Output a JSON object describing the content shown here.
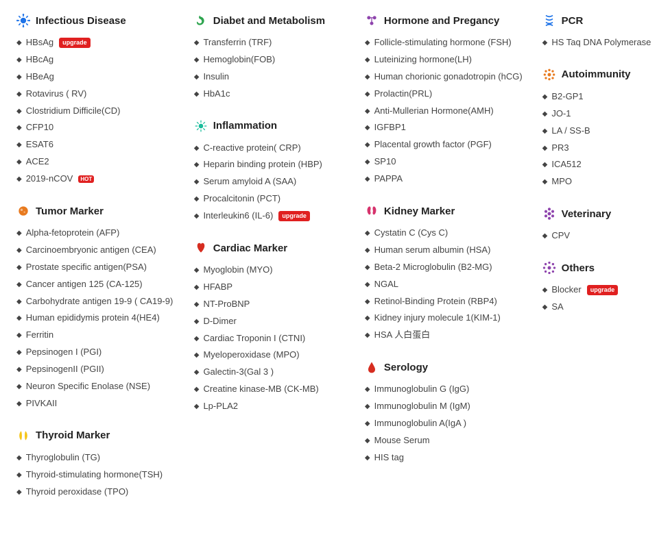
{
  "badges": {
    "upgrade": "upgrade",
    "hot": "HOT"
  },
  "columns": [
    [
      {
        "icon": "virus",
        "iconColor": "#1e73e8",
        "title": "Infectious Disease",
        "items": [
          {
            "label": "HBsAg",
            "badge": "upgrade"
          },
          {
            "label": "HBcAg"
          },
          {
            "label": "HBeAg"
          },
          {
            "label": "Rotavirus ( RV)"
          },
          {
            "label": "Clostridium Difficile(CD)"
          },
          {
            "label": "CFP10"
          },
          {
            "label": "ESAT6"
          },
          {
            "label": "ACE2"
          },
          {
            "label": "2019-nCOV",
            "badge": "hot"
          }
        ]
      },
      {
        "icon": "tumor",
        "iconColor": "#e87a1e",
        "title": "Tumor Marker",
        "items": [
          {
            "label": "Alpha-fetoprotein (AFP)"
          },
          {
            "label": "Carcinoembryonic antigen (CEA)"
          },
          {
            "label": "Prostate specific antigen(PSA)"
          },
          {
            "label": "Cancer antigen 125 (CA-125)"
          },
          {
            "label": "Carbohydrate antigen 19-9 ( CA19-9)"
          },
          {
            "label": "Human epididymis protein 4(HE4)"
          },
          {
            "label": "Ferritin"
          },
          {
            "label": "Pepsinogen I (PGI)"
          },
          {
            "label": "PepsinogenII (PGII)"
          },
          {
            "label": "Neuron Specific Enolase (NSE)"
          },
          {
            "label": "PIVKAII"
          }
        ]
      },
      {
        "icon": "thyroid",
        "iconColor": "#f5c518",
        "title": "Thyroid Marker",
        "items": [
          {
            "label": "Thyroglobulin (TG)"
          },
          {
            "label": "Thyroid-stimulating hormone(TSH)"
          },
          {
            "label": "Thyroid peroxidase (TPO)"
          }
        ]
      }
    ],
    [
      {
        "icon": "stomach",
        "iconColor": "#2da44e",
        "title": "Diabet and Metabolism",
        "items": [
          {
            "label": "Transferrin (TRF)"
          },
          {
            "label": "Hemoglobin(FOB)"
          },
          {
            "label": "Insulin"
          },
          {
            "label": "HbA1c"
          }
        ]
      },
      {
        "icon": "inflam",
        "iconColor": "#1abc9c",
        "title": "Inflammation",
        "items": [
          {
            "label": "C-reactive protein( CRP)"
          },
          {
            "label": "Heparin binding protein (HBP)"
          },
          {
            "label": "Serum amyloid A (SAA)"
          },
          {
            "label": "Procalcitonin (PCT)"
          },
          {
            "label": "Interleukin6 (IL-6)",
            "badge": "upgrade"
          }
        ]
      },
      {
        "icon": "heart",
        "iconColor": "#d62d20",
        "title": "Cardiac Marker",
        "items": [
          {
            "label": "Myoglobin (MYO)"
          },
          {
            "label": "HFABP"
          },
          {
            "label": "NT-ProBNP"
          },
          {
            "label": "D-Dimer"
          },
          {
            "label": "Cardiac Troponin I (CTNI)"
          },
          {
            "label": "Myeloperoxidase (MPO)"
          },
          {
            "label": "Galectin-3(Gal 3 )"
          },
          {
            "label": "Creatine kinase-MB (CK-MB)"
          },
          {
            "label": "Lp-PLA2"
          }
        ]
      }
    ],
    [
      {
        "icon": "hormone",
        "iconColor": "#8e44ad",
        "title": "Hormone and Pregancy",
        "items": [
          {
            "label": "Follicle-stimulating hormone (FSH)"
          },
          {
            "label": "Luteinizing hormone(LH)"
          },
          {
            "label": "Human chorionic gonadotropin (hCG)"
          },
          {
            "label": "Prolactin(PRL)"
          },
          {
            "label": "Anti-Mullerian Hormone(AMH)"
          },
          {
            "label": "IGFBP1"
          },
          {
            "label": "Placental growth factor (PGF)"
          },
          {
            "label": "SP10"
          },
          {
            "label": "PAPPA"
          }
        ]
      },
      {
        "icon": "kidney",
        "iconColor": "#d6336c",
        "title": "Kidney Marker",
        "items": [
          {
            "label": "Cystatin C (Cys C)"
          },
          {
            "label": "Human serum albumin (HSA)"
          },
          {
            "label": "Beta-2 Microglobulin (B2-MG)"
          },
          {
            "label": "NGAL"
          },
          {
            "label": "Retinol-Binding Protein (RBP4)"
          },
          {
            "label": "Kidney injury molecule 1(KIM-1)"
          },
          {
            "label": "HSA 人白蛋白"
          }
        ]
      },
      {
        "icon": "blood",
        "iconColor": "#d62d20",
        "title": "Serology",
        "items": [
          {
            "label": "Immunoglobulin G (IgG)"
          },
          {
            "label": "Immunoglobulin M (IgM)"
          },
          {
            "label": "Immunoglobulin A(IgA )"
          },
          {
            "label": "Mouse Serum"
          },
          {
            "label": "HIS tag"
          }
        ]
      }
    ],
    [
      {
        "icon": "pcr",
        "iconColor": "#1e73e8",
        "title": "PCR",
        "items": [
          {
            "label": "HS Taq DNA Polymerase"
          }
        ]
      },
      {
        "icon": "auto",
        "iconColor": "#e87a1e",
        "title": "Autoimmunity",
        "items": [
          {
            "label": "B2-GP1"
          },
          {
            "label": "JO-1"
          },
          {
            "label": "LA / SS-B"
          },
          {
            "label": "PR3"
          },
          {
            "label": "ICA512"
          },
          {
            "label": "MPO"
          }
        ]
      },
      {
        "icon": "vet",
        "iconColor": "#8e44ad",
        "title": "Veterinary",
        "items": [
          {
            "label": "CPV"
          }
        ]
      },
      {
        "icon": "other",
        "iconColor": "#8e44ad",
        "title": "Others",
        "items": [
          {
            "label": "Blocker",
            "badge": "upgrade"
          },
          {
            "label": "SA"
          }
        ]
      }
    ]
  ]
}
